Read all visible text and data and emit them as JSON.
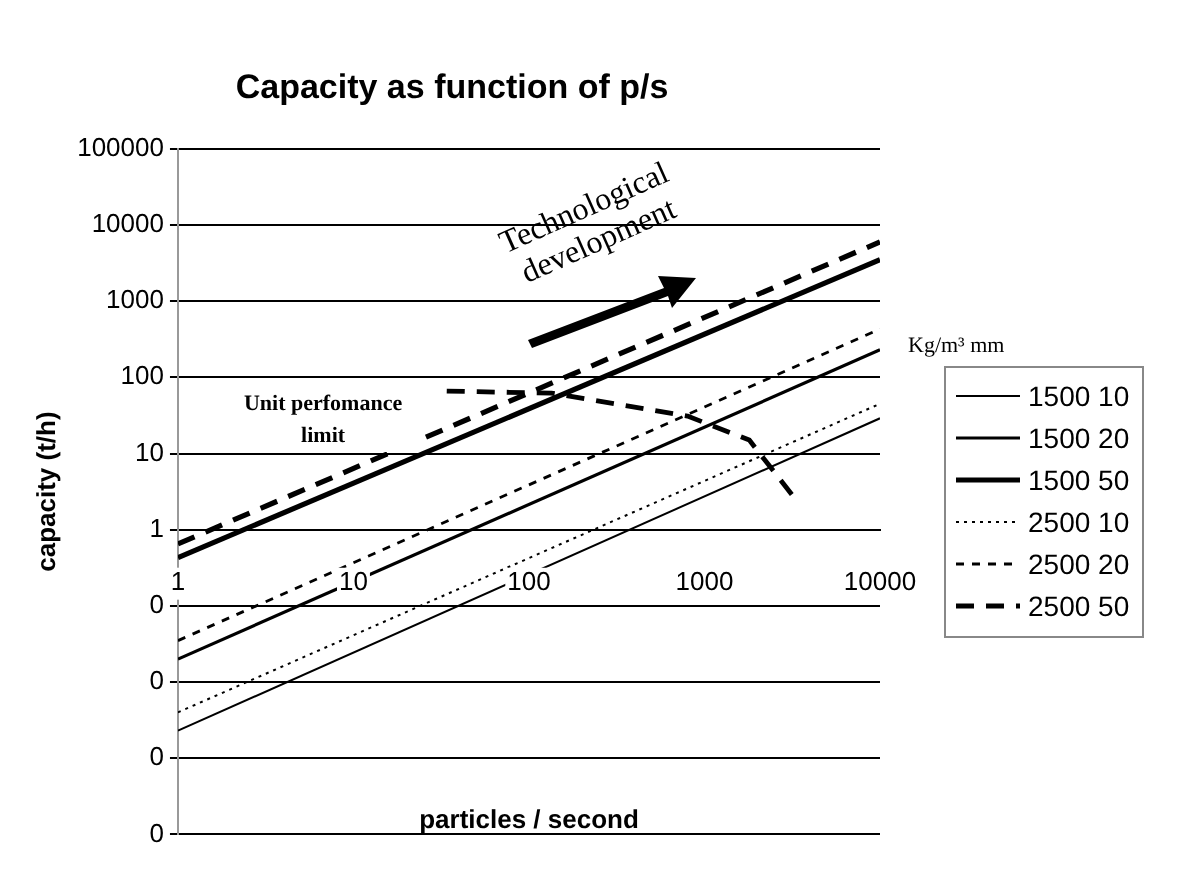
{
  "chart_data": {
    "type": "line",
    "title": "Capacity as function of p/s",
    "xlabel": "particles / second",
    "ylabel": "capacity (t/h)",
    "legend_title": "Kg/m³    mm",
    "log": "xy",
    "grid": "y",
    "legend": "right",
    "marker": "none",
    "xlim": [
      1,
      10000
    ],
    "xticks": [
      1,
      10,
      100,
      1000,
      10000
    ],
    "ylim": [
      0.0001,
      100000
    ],
    "yticks": [
      {
        "value": 0.0001,
        "label": "0"
      },
      {
        "value": 0.001,
        "label": "0"
      },
      {
        "value": 0.01,
        "label": "0"
      },
      {
        "value": 0.1,
        "label": "0"
      },
      1,
      10,
      100,
      1000,
      10000,
      100000
    ],
    "series": [
      {
        "name": "1500 10",
        "color": "#000000",
        "line_style": "solid",
        "x": [
          1,
          10000
        ],
        "values": [
          0.0023,
          29
        ]
      },
      {
        "name": "1500 20",
        "color": "#000000",
        "line_style": "solid",
        "x": [
          1,
          10000
        ],
        "values": [
          0.02,
          230
        ]
      },
      {
        "name": "1500 50",
        "color": "#000000",
        "line_style": "solid",
        "x": [
          1,
          10000
        ],
        "values": [
          0.43,
          3500
        ]
      },
      {
        "name": "2500 10",
        "color": "#000000",
        "line_style": "dotted",
        "x": [
          1,
          10000
        ],
        "values": [
          0.004,
          45
        ]
      },
      {
        "name": "2500 20",
        "color": "#000000",
        "line_style": "dashed",
        "x": [
          1,
          10000
        ],
        "values": [
          0.035,
          430
        ]
      },
      {
        "name": "2500 50",
        "color": "#000000",
        "line_style": "dashed",
        "x": [
          1,
          10000
        ],
        "values": [
          0.65,
          6000
        ]
      },
      {
        "color": "#000000",
        "line_style": "dashed",
        "x": [
          34,
          134,
          800,
          1800,
          3400
        ],
        "values": [
          66,
          62,
          31,
          15,
          2.3
        ]
      }
    ],
    "annotations": [
      "Unit perfomance limit",
      "Technological development"
    ]
  }
}
